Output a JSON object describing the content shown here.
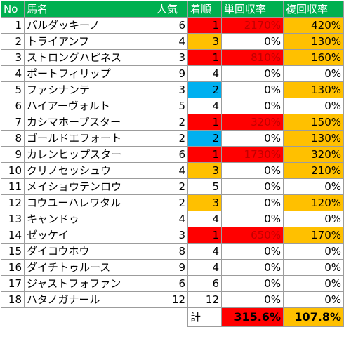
{
  "headers": {
    "no": "No",
    "name": "馬名",
    "pop": "人気",
    "rank": "着順",
    "win": "単回収率",
    "place": "複回収率"
  },
  "rows": [
    {
      "no": "1",
      "name": "バルダッキーノ",
      "pop": "6",
      "rank": "1",
      "win": "2170%",
      "place": "420%",
      "rank_color": "red",
      "win_color": "red",
      "place_color": "orange"
    },
    {
      "no": "2",
      "name": "トライアンフ",
      "pop": "4",
      "rank": "3",
      "win": "0%",
      "place": "130%",
      "rank_color": "orange",
      "win_color": "",
      "place_color": "orange"
    },
    {
      "no": "3",
      "name": "ストロングハピネス",
      "pop": "3",
      "rank": "1",
      "win": "810%",
      "place": "160%",
      "rank_color": "red",
      "win_color": "red",
      "place_color": "orange"
    },
    {
      "no": "4",
      "name": "ポートフィリップ",
      "pop": "9",
      "rank": "4",
      "win": "0%",
      "place": "0%",
      "rank_color": "",
      "win_color": "",
      "place_color": ""
    },
    {
      "no": "5",
      "name": "ファシナンテ",
      "pop": "3",
      "rank": "2",
      "win": "0%",
      "place": "130%",
      "rank_color": "blue",
      "win_color": "",
      "place_color": "orange"
    },
    {
      "no": "6",
      "name": "ハイアーヴォルト",
      "pop": "5",
      "rank": "4",
      "win": "0%",
      "place": "0%",
      "rank_color": "",
      "win_color": "",
      "place_color": ""
    },
    {
      "no": "7",
      "name": "カシマホープスター",
      "pop": "2",
      "rank": "1",
      "win": "320%",
      "place": "150%",
      "rank_color": "red",
      "win_color": "red",
      "place_color": "orange"
    },
    {
      "no": "8",
      "name": "ゴールドエフォート",
      "pop": "2",
      "rank": "2",
      "win": "0%",
      "place": "130%",
      "rank_color": "blue",
      "win_color": "",
      "place_color": "orange"
    },
    {
      "no": "9",
      "name": "カレンヒップスター",
      "pop": "6",
      "rank": "1",
      "win": "1730%",
      "place": "320%",
      "rank_color": "red",
      "win_color": "red",
      "place_color": "orange"
    },
    {
      "no": "10",
      "name": "クリノセッシュウ",
      "pop": "4",
      "rank": "3",
      "win": "0%",
      "place": "210%",
      "rank_color": "orange",
      "win_color": "",
      "place_color": "orange"
    },
    {
      "no": "11",
      "name": "メイショウテンロウ",
      "pop": "2",
      "rank": "5",
      "win": "0%",
      "place": "0%",
      "rank_color": "",
      "win_color": "",
      "place_color": ""
    },
    {
      "no": "12",
      "name": "コウユーハレワタル",
      "pop": "2",
      "rank": "3",
      "win": "0%",
      "place": "120%",
      "rank_color": "orange",
      "win_color": "",
      "place_color": "orange"
    },
    {
      "no": "13",
      "name": "キャンドゥ",
      "pop": "4",
      "rank": "4",
      "win": "0%",
      "place": "0%",
      "rank_color": "",
      "win_color": "",
      "place_color": ""
    },
    {
      "no": "14",
      "name": "ゼッケイ",
      "pop": "3",
      "rank": "1",
      "win": "650%",
      "place": "170%",
      "rank_color": "red",
      "win_color": "red",
      "place_color": "orange"
    },
    {
      "no": "15",
      "name": "ダイコウホウ",
      "pop": "8",
      "rank": "4",
      "win": "0%",
      "place": "0%",
      "rank_color": "",
      "win_color": "",
      "place_color": ""
    },
    {
      "no": "16",
      "name": "ダイチトゥルース",
      "pop": "9",
      "rank": "4",
      "win": "0%",
      "place": "0%",
      "rank_color": "",
      "win_color": "",
      "place_color": ""
    },
    {
      "no": "17",
      "name": "ジャストフォファン",
      "pop": "6",
      "rank": "6",
      "win": "0%",
      "place": "0%",
      "rank_color": "",
      "win_color": "",
      "place_color": ""
    },
    {
      "no": "18",
      "name": "ハタノガナール",
      "pop": "12",
      "rank": "12",
      "win": "0%",
      "place": "0%",
      "rank_color": "",
      "win_color": "",
      "place_color": ""
    }
  ],
  "total": {
    "label": "計",
    "win": "315.6%",
    "place": "107.8%"
  },
  "colors": {
    "header": "#00b050",
    "red": "#ff0000",
    "orange": "#ffc000",
    "blue": "#00b0f0",
    "win_text": "#c00000"
  }
}
